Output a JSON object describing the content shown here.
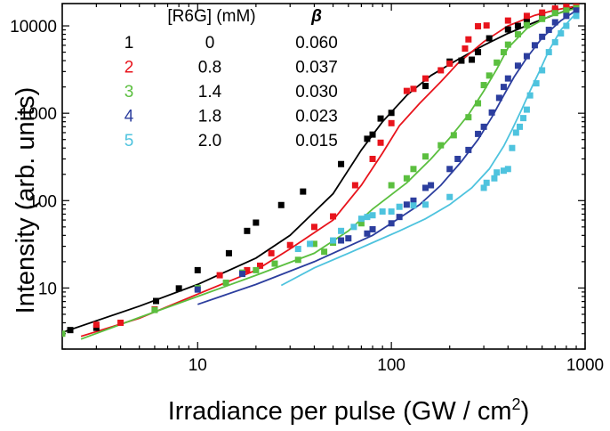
{
  "chart_data": {
    "type": "scatter",
    "xscale": "log",
    "yscale": "log",
    "xlim": [
      2,
      1000
    ],
    "ylim": [
      2,
      18000
    ],
    "xlabel_main": "Irradiance per pulse (GW / cm",
    "xlabel_sup": "2",
    "xlabel_end": ")",
    "ylabel": "Intensity (arb. units)",
    "x_ticks": [
      {
        "value": 10,
        "label": "10"
      },
      {
        "value": 100,
        "label": "100"
      },
      {
        "value": 1000,
        "label": "1000"
      }
    ],
    "y_ticks": [
      {
        "value": 10,
        "label": "10"
      },
      {
        "value": 100,
        "label": "100"
      },
      {
        "value": 1000,
        "label": "1000"
      },
      {
        "value": 10000,
        "label": "10000"
      }
    ],
    "legend": {
      "header_conc": "[R6G] (mM)",
      "header_beta": "β",
      "rows": [
        {
          "index": "1",
          "conc": "0",
          "beta": "0.060"
        },
        {
          "index": "2",
          "conc": "0.8",
          "beta": "0.037"
        },
        {
          "index": "3",
          "conc": "1.4",
          "beta": "0.030"
        },
        {
          "index": "4",
          "conc": "1.8",
          "beta": "0.023"
        },
        {
          "index": "5",
          "conc": "2.0",
          "beta": "0.015"
        }
      ]
    },
    "series": [
      {
        "name": "1",
        "color": "#000000",
        "points": [
          [
            2.2,
            3.3
          ],
          [
            3,
            3.5
          ],
          [
            6.1,
            7.1
          ],
          [
            8,
            9.9
          ],
          [
            10,
            16
          ],
          [
            14.5,
            25
          ],
          [
            18,
            45
          ],
          [
            20,
            56
          ],
          [
            27,
            89
          ],
          [
            35,
            127
          ],
          [
            55,
            262
          ],
          [
            75,
            510
          ],
          [
            80,
            570
          ],
          [
            88,
            870
          ],
          [
            100,
            1010
          ],
          [
            150,
            2050
          ],
          [
            200,
            3900
          ],
          [
            230,
            4000
          ],
          [
            260,
            4100
          ],
          [
            280,
            5000
          ],
          [
            320,
            7200
          ],
          [
            400,
            9100
          ],
          [
            450,
            10000
          ],
          [
            500,
            11300
          ],
          [
            600,
            13000
          ],
          [
            700,
            15000
          ],
          [
            800,
            16200
          ],
          [
            900,
            17000
          ]
        ],
        "line": [
          [
            2,
            3.1
          ],
          [
            5,
            6.2
          ],
          [
            10,
            11
          ],
          [
            20,
            22
          ],
          [
            30,
            40
          ],
          [
            50,
            120
          ],
          [
            70,
            380
          ],
          [
            90,
            800
          ],
          [
            120,
            1600
          ],
          [
            160,
            2700
          ],
          [
            220,
            4100
          ],
          [
            300,
            6000
          ],
          [
            400,
            8200
          ],
          [
            550,
            11000
          ],
          [
            700,
            13500
          ],
          [
            900,
            16500
          ]
        ]
      },
      {
        "name": "2",
        "color": "#e8141c",
        "points": [
          [
            3,
            3.8
          ],
          [
            4,
            4
          ],
          [
            6,
            5.7
          ],
          [
            13,
            14
          ],
          [
            18,
            16
          ],
          [
            21,
            18
          ],
          [
            24,
            25
          ],
          [
            30,
            31
          ],
          [
            40,
            50
          ],
          [
            50,
            66
          ],
          [
            65,
            150
          ],
          [
            80,
            300
          ],
          [
            88,
            460
          ],
          [
            100,
            770
          ],
          [
            120,
            1800
          ],
          [
            130,
            1900
          ],
          [
            150,
            2500
          ],
          [
            180,
            3100
          ],
          [
            200,
            3700
          ],
          [
            240,
            5500
          ],
          [
            250,
            7000
          ],
          [
            280,
            9900
          ],
          [
            310,
            10100
          ],
          [
            400,
            11500
          ],
          [
            500,
            13000
          ],
          [
            600,
            14200
          ],
          [
            700,
            15800
          ],
          [
            800,
            16500
          ],
          [
            900,
            17200
          ]
        ],
        "line": [
          [
            2.5,
            2.8
          ],
          [
            5,
            4.5
          ],
          [
            10,
            8.5
          ],
          [
            20,
            16
          ],
          [
            30,
            28
          ],
          [
            50,
            60
          ],
          [
            70,
            150
          ],
          [
            90,
            350
          ],
          [
            110,
            720
          ],
          [
            140,
            1300
          ],
          [
            180,
            2300
          ],
          [
            220,
            3700
          ],
          [
            300,
            6600
          ],
          [
            400,
            10000
          ],
          [
            550,
            13200
          ],
          [
            700,
            15200
          ],
          [
            900,
            16800
          ]
        ]
      },
      {
        "name": "3",
        "color": "#5bbf3f",
        "points": [
          [
            2,
            3
          ],
          [
            6,
            5.6
          ],
          [
            10,
            10
          ],
          [
            14,
            11.5
          ],
          [
            17,
            15
          ],
          [
            20,
            16
          ],
          [
            25,
            19
          ],
          [
            33,
            21
          ],
          [
            40,
            32
          ],
          [
            45,
            26
          ],
          [
            50,
            33
          ],
          [
            70,
            55
          ],
          [
            100,
            150
          ],
          [
            120,
            180
          ],
          [
            130,
            230
          ],
          [
            150,
            320
          ],
          [
            180,
            430
          ],
          [
            210,
            560
          ],
          [
            250,
            900
          ],
          [
            280,
            1300
          ],
          [
            300,
            2100
          ],
          [
            320,
            2700
          ],
          [
            350,
            3800
          ],
          [
            380,
            5000
          ],
          [
            400,
            6100
          ],
          [
            450,
            8000
          ],
          [
            500,
            10200
          ],
          [
            600,
            12000
          ],
          [
            700,
            14000
          ],
          [
            800,
            15000
          ],
          [
            900,
            16000
          ]
        ],
        "line": [
          [
            2.5,
            2.6
          ],
          [
            5,
            4.6
          ],
          [
            10,
            8
          ],
          [
            20,
            14
          ],
          [
            40,
            25
          ],
          [
            60,
            45
          ],
          [
            80,
            80
          ],
          [
            120,
            160
          ],
          [
            160,
            300
          ],
          [
            200,
            520
          ],
          [
            250,
            960
          ],
          [
            300,
            1800
          ],
          [
            350,
            3200
          ],
          [
            400,
            5600
          ],
          [
            500,
            9300
          ],
          [
            650,
            12800
          ],
          [
            900,
            16000
          ]
        ]
      },
      {
        "name": "4",
        "color": "#2c3e9e",
        "points": [
          [
            10,
            9.6
          ],
          [
            17,
            14.5
          ],
          [
            55,
            35
          ],
          [
            60,
            37
          ],
          [
            75,
            42
          ],
          [
            80,
            47
          ],
          [
            100,
            55
          ],
          [
            110,
            65
          ],
          [
            120,
            90
          ],
          [
            130,
            100
          ],
          [
            150,
            140
          ],
          [
            160,
            150
          ],
          [
            200,
            230
          ],
          [
            220,
            300
          ],
          [
            250,
            380
          ],
          [
            280,
            580
          ],
          [
            300,
            700
          ],
          [
            330,
            1020
          ],
          [
            360,
            1500
          ],
          [
            380,
            2000
          ],
          [
            400,
            2500
          ],
          [
            450,
            3500
          ],
          [
            500,
            4500
          ],
          [
            550,
            6000
          ],
          [
            600,
            7500
          ],
          [
            650,
            9000
          ],
          [
            700,
            11000
          ],
          [
            800,
            13000
          ],
          [
            900,
            15000
          ]
        ],
        "line": [
          [
            10,
            6.5
          ],
          [
            20,
            11
          ],
          [
            40,
            20
          ],
          [
            60,
            30
          ],
          [
            80,
            40
          ],
          [
            100,
            55
          ],
          [
            140,
            90
          ],
          [
            180,
            150
          ],
          [
            230,
            280
          ],
          [
            280,
            500
          ],
          [
            330,
            900
          ],
          [
            380,
            1600
          ],
          [
            430,
            2600
          ],
          [
            500,
            4300
          ],
          [
            600,
            7300
          ],
          [
            750,
            11500
          ],
          [
            900,
            15000
          ]
        ]
      },
      {
        "name": "5",
        "color": "#4ec3de",
        "points": [
          [
            33,
            28
          ],
          [
            38,
            32
          ],
          [
            50,
            35
          ],
          [
            55,
            45
          ],
          [
            64,
            50
          ],
          [
            70,
            62
          ],
          [
            75,
            65
          ],
          [
            80,
            68
          ],
          [
            90,
            75
          ],
          [
            100,
            75
          ],
          [
            110,
            85
          ],
          [
            130,
            88
          ],
          [
            150,
            90
          ],
          [
            200,
            110
          ],
          [
            300,
            140
          ],
          [
            310,
            160
          ],
          [
            340,
            180
          ],
          [
            350,
            210
          ],
          [
            380,
            220
          ],
          [
            400,
            230
          ],
          [
            420,
            400
          ],
          [
            440,
            600
          ],
          [
            460,
            700
          ],
          [
            480,
            880
          ],
          [
            500,
            1100
          ],
          [
            520,
            1600
          ],
          [
            560,
            2200
          ],
          [
            600,
            3100
          ],
          [
            650,
            5000
          ],
          [
            700,
            6500
          ],
          [
            750,
            8200
          ],
          [
            800,
            10000
          ],
          [
            900,
            13000
          ]
        ],
        "line": [
          [
            27,
            10.7
          ],
          [
            40,
            17
          ],
          [
            60,
            25
          ],
          [
            80,
            33
          ],
          [
            110,
            45
          ],
          [
            150,
            62
          ],
          [
            200,
            90
          ],
          [
            260,
            140
          ],
          [
            320,
            230
          ],
          [
            380,
            420
          ],
          [
            420,
            650
          ],
          [
            470,
            1100
          ],
          [
            520,
            1800
          ],
          [
            580,
            3000
          ],
          [
            650,
            5200
          ],
          [
            750,
            9000
          ],
          [
            900,
            14000
          ]
        ]
      }
    ]
  }
}
